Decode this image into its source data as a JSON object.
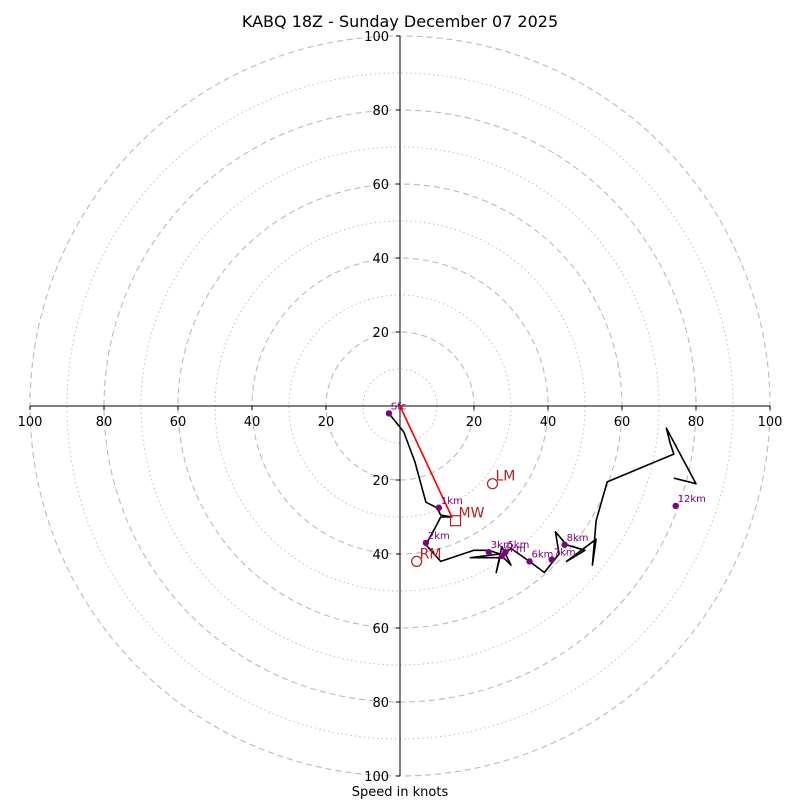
{
  "chart_data": {
    "type": "hodograph",
    "title": "KABQ 18Z - Sunday December 07 2025",
    "xlabel": "Speed in knots",
    "range": [
      -100,
      100
    ],
    "major_rings": [
      20,
      40,
      60,
      80,
      100
    ],
    "minor_rings": [
      10,
      30,
      50,
      70,
      90
    ],
    "x_tick_labels": [
      "100",
      "80",
      "60",
      "40",
      "20",
      "20",
      "40",
      "60",
      "80",
      "100"
    ],
    "x_tick_values": [
      -100,
      -80,
      -60,
      -40,
      -20,
      20,
      40,
      60,
      80,
      100
    ],
    "y_tick_labels": [
      "100",
      "80",
      "60",
      "40",
      "20",
      "20",
      "40",
      "60",
      "80",
      "100"
    ],
    "y_tick_values": [
      100,
      80,
      60,
      40,
      20,
      -20,
      -40,
      -60,
      -80,
      -100
    ],
    "trace": [
      [
        -3,
        -2
      ],
      [
        1,
        -7
      ],
      [
        4,
        -15
      ],
      [
        7,
        -26
      ],
      [
        10,
        -27.5
      ],
      [
        11,
        -29.5
      ],
      [
        14,
        -30
      ],
      [
        11,
        -30
      ],
      [
        10,
        -32
      ],
      [
        7,
        -37.5
      ],
      [
        11,
        -42
      ],
      [
        20,
        -39
      ],
      [
        24,
        -39
      ],
      [
        27,
        -40
      ],
      [
        19,
        -41
      ],
      [
        28,
        -41
      ],
      [
        30,
        -43
      ],
      [
        27.5,
        -38
      ],
      [
        26,
        -45
      ],
      [
        27,
        -41
      ],
      [
        30,
        -38.5
      ],
      [
        35,
        -42
      ],
      [
        39,
        -45
      ],
      [
        43,
        -40
      ],
      [
        42,
        -34
      ],
      [
        45,
        -37.5
      ],
      [
        50,
        -39
      ],
      [
        45,
        -42
      ],
      [
        53,
        -36
      ],
      [
        52,
        -43
      ],
      [
        53,
        -31
      ],
      [
        56,
        -20.5
      ],
      [
        74,
        -13
      ],
      [
        73,
        -10
      ],
      [
        72,
        -6
      ],
      [
        80,
        -21
      ],
      [
        74,
        -19.5
      ]
    ],
    "bulk_shear_line": {
      "from": [
        0,
        0
      ],
      "to": [
        14,
        -30
      ]
    },
    "height_markers": [
      {
        "label": "Sfc",
        "u": -3,
        "v": -2
      },
      {
        "label": "1km",
        "u": 10.5,
        "v": -27.5
      },
      {
        "label": "2km",
        "u": 7,
        "v": -37
      },
      {
        "label": "3km",
        "u": 24,
        "v": -39.5
      },
      {
        "label": "4km",
        "u": 27.5,
        "v": -40.5
      },
      {
        "label": "5km",
        "u": 28.5,
        "v": -39.5
      },
      {
        "label": "6km",
        "u": 35,
        "v": -42
      },
      {
        "label": "7km",
        "u": 41,
        "v": -41.5
      },
      {
        "label": "8km",
        "u": 44.5,
        "v": -37.5
      },
      {
        "label": "12km",
        "u": 74.5,
        "v": -27
      }
    ],
    "storm_motion": [
      {
        "label": "LM",
        "u": 25,
        "v": -21,
        "marker": "circle"
      },
      {
        "label": "RM",
        "u": 4.5,
        "v": -42,
        "marker": "circle"
      },
      {
        "label": "MW",
        "u": 15,
        "v": -31,
        "marker": "square"
      }
    ],
    "colors": {
      "trace": "#000000",
      "shear_line": "#ff0000",
      "height_marker": "#800080",
      "storm_motion": "#b22222",
      "grid": "#bbbbbb",
      "axes": "#000000"
    }
  }
}
